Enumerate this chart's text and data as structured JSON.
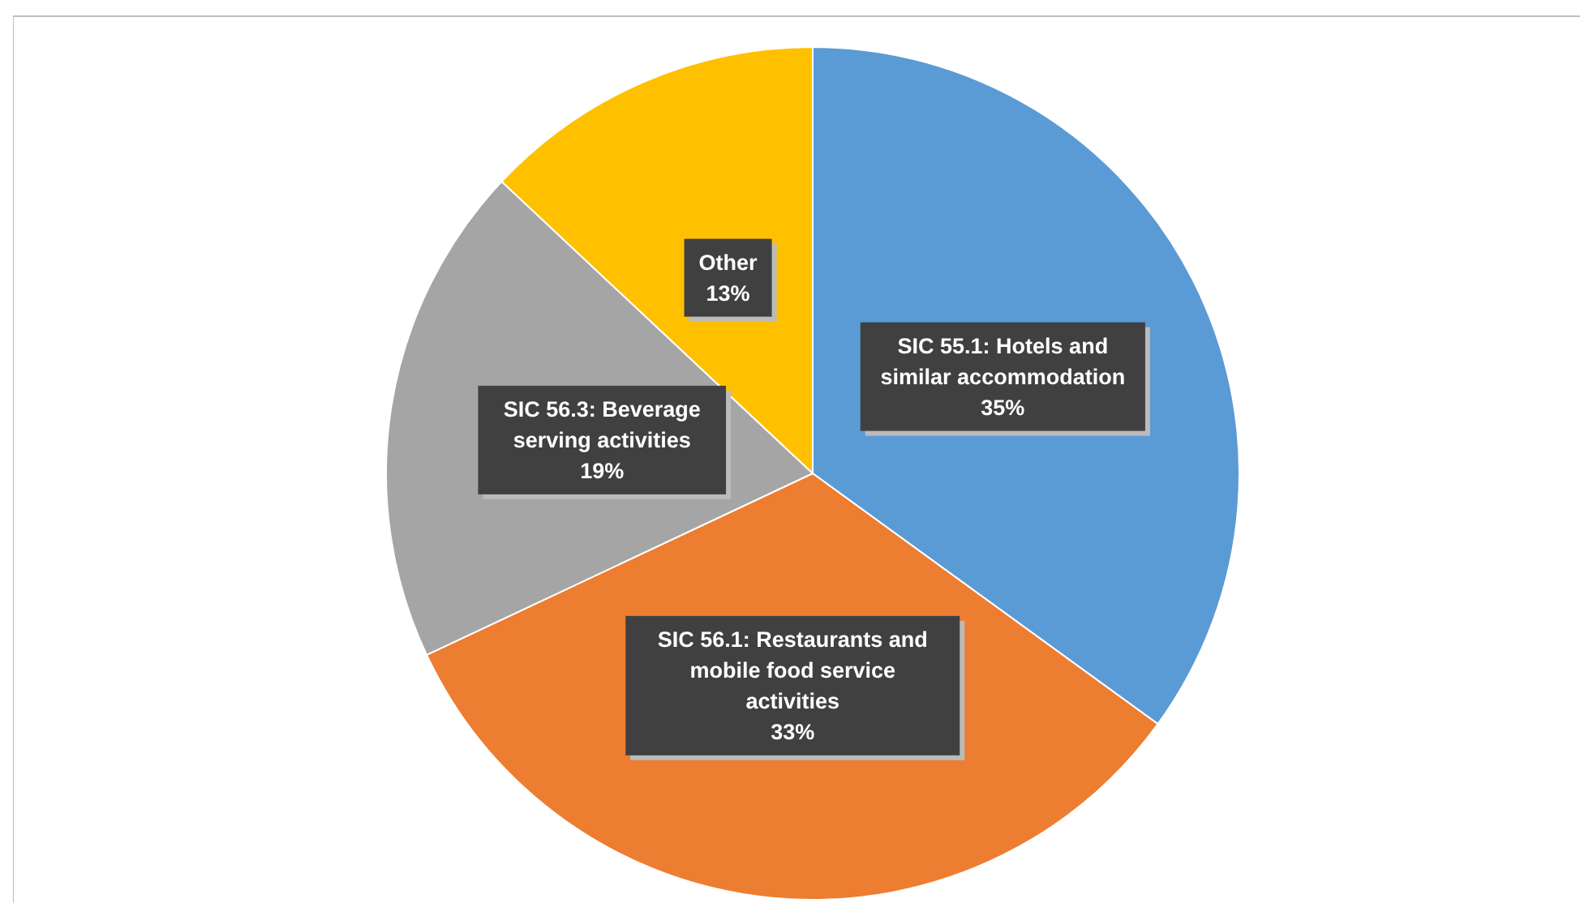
{
  "chart_data": {
    "type": "pie",
    "categories": [
      "SIC 55.1: Hotels and similar accommodation",
      "SIC 56.1: Restaurants and mobile food service activities",
      "SIC 56.3: Beverage serving activities",
      "Other"
    ],
    "values": [
      35,
      33,
      19,
      13
    ],
    "colors": [
      "#5b9bd5",
      "#ed7d31",
      "#a5a5a5",
      "#ffc000"
    ],
    "value_labels": [
      "35%",
      "33%",
      "19%",
      "13%"
    ]
  }
}
